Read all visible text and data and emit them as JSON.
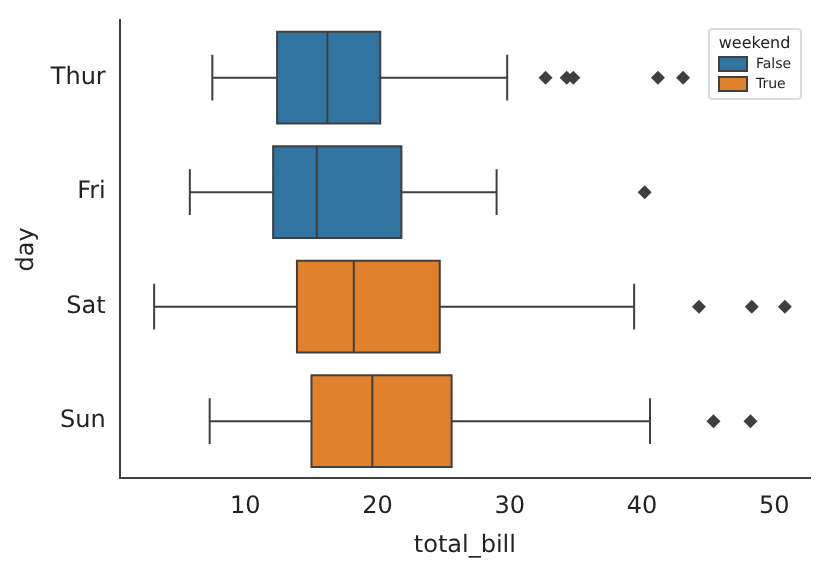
{
  "chart_data": {
    "type": "box",
    "orientation": "horizontal",
    "xlabel": "total_bill",
    "ylabel": "day",
    "legend_title": "weekend",
    "legend": "top right",
    "marker": "diamond",
    "grid": false,
    "categories": [
      "Thur",
      "Fri",
      "Sat",
      "Sun"
    ],
    "xlim": [
      0.5,
      52.7
    ],
    "xticks": [
      10,
      20,
      30,
      40,
      50
    ],
    "series": [
      {
        "name": "False",
        "color": "#3274a1",
        "boxes": [
          {
            "low": 7.5,
            "q1": 12.4,
            "median": 16.2,
            "q3": 20.2,
            "high": 29.8,
            "outliers": [
              32.7,
              34.3,
              34.8,
              41.2,
              43.1
            ]
          },
          {
            "low": 5.8,
            "q1": 12.1,
            "median": 15.4,
            "q3": 21.8,
            "high": 29.0,
            "outliers": [
              40.2
            ]
          },
          null,
          null
        ]
      },
      {
        "name": "True",
        "color": "#e1812c",
        "boxes": [
          null,
          null,
          {
            "low": 3.1,
            "q1": 13.9,
            "median": 18.2,
            "q3": 24.7,
            "high": 39.4,
            "outliers": [
              44.3,
              48.3,
              50.8
            ]
          },
          {
            "low": 7.3,
            "q1": 15.0,
            "median": 19.6,
            "q3": 25.6,
            "high": 40.6,
            "outliers": [
              45.4,
              48.2
            ]
          }
        ]
      }
    ]
  }
}
